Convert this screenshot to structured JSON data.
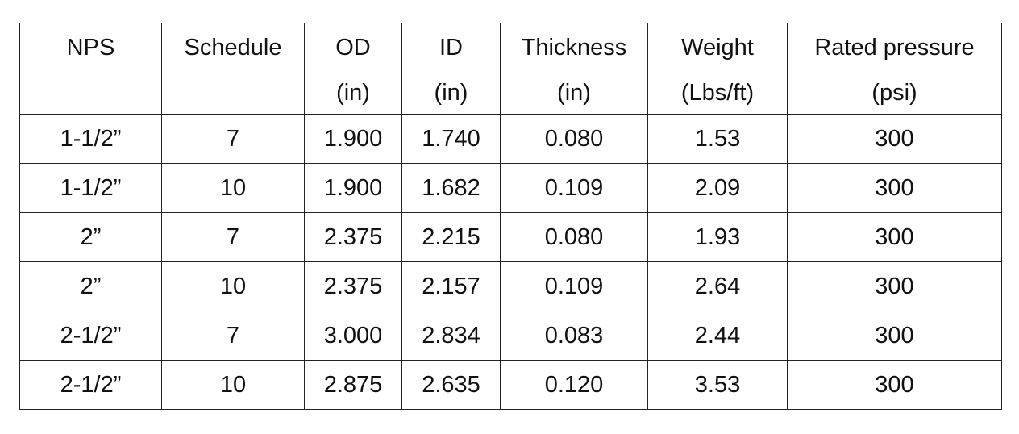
{
  "table": {
    "header": [
      [
        "NPS"
      ],
      [
        "Schedule"
      ],
      [
        "OD",
        "(in)"
      ],
      [
        "ID",
        "(in)"
      ],
      [
        "Thickness",
        "(in)"
      ],
      [
        "Weight",
        "(Lbs/ft)"
      ],
      [
        "Rated pressure",
        "(psi)"
      ]
    ],
    "rows": [
      [
        "1-1/2”",
        "7",
        "1.900",
        "1.740",
        "0.080",
        "1.53",
        "300"
      ],
      [
        "1-1/2”",
        "10",
        "1.900",
        "1.682",
        "0.109",
        "2.09",
        "300"
      ],
      [
        "2”",
        "7",
        "2.375",
        "2.215",
        "0.080",
        "1.93",
        "300"
      ],
      [
        "2”",
        "10",
        "2.375",
        "2.157",
        "0.109",
        "2.64",
        "300"
      ],
      [
        "2-1/2”",
        "7",
        "3.000",
        "2.834",
        "0.083",
        "2.44",
        "300"
      ],
      [
        "2-1/2”",
        "10",
        "2.875",
        "2.635",
        "0.120",
        "3.53",
        "300"
      ]
    ]
  }
}
